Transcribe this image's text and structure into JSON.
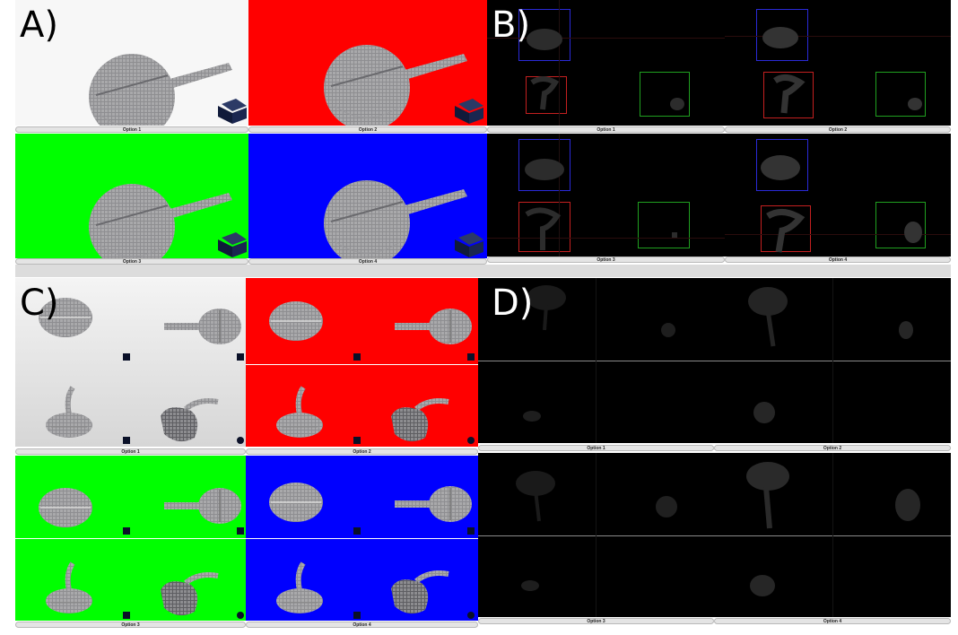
{
  "labels": {
    "a": "A)",
    "b": "B)",
    "c": "C)",
    "d": "D)"
  },
  "options": {
    "o1": "Option 1",
    "o2": "Option 2",
    "o3": "Option 3",
    "o4": "Option 4"
  },
  "colors": {
    "white_bg": "#f7f7f7",
    "red_bg": "#ff0000",
    "green_bg": "#00ff00",
    "blue_bg": "#0000ff",
    "dark_bg": "#000000",
    "model": "#a9a9ab",
    "box_blue": "#2a2ad8",
    "box_red": "#c42020",
    "box_green": "#20a020"
  },
  "icons": {
    "voxel_model": "voxel-model-icon",
    "orientation_cube": "orientation-cube-icon",
    "corner_marker": "corner-marker-icon"
  }
}
